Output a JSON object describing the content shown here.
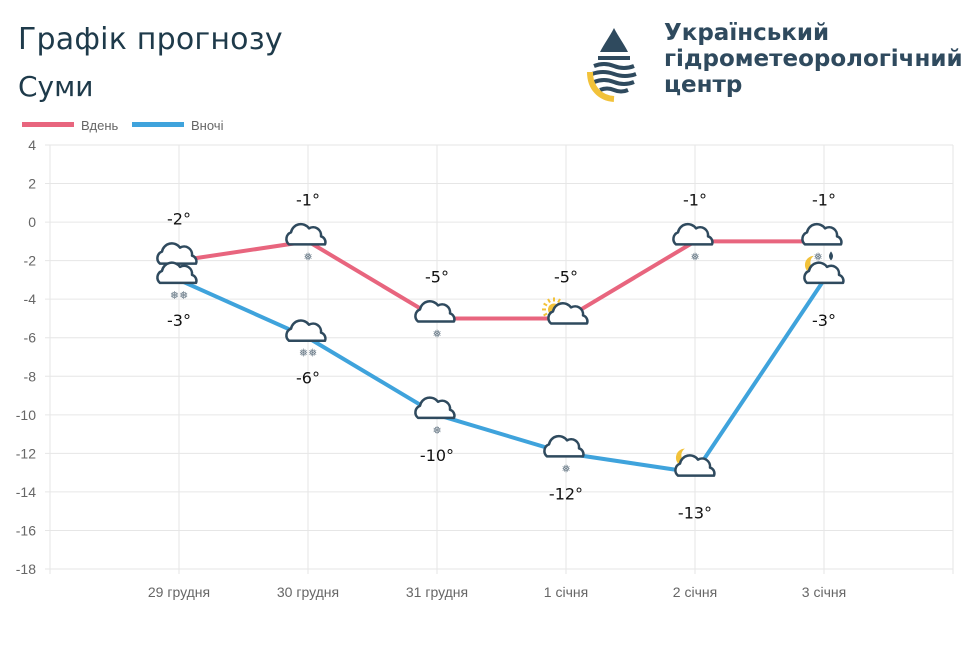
{
  "header": {
    "title": "Графік прогнозу",
    "city": "Суми",
    "org_line1": "Український",
    "org_line2": "гідрометеорологічний",
    "org_line3": "центр"
  },
  "chart_data": {
    "type": "line",
    "categories": [
      "29 грудня",
      "30 грудня",
      "31 грудня",
      "1 січня",
      "2 січня",
      "3 січня"
    ],
    "series": [
      {
        "name": "Вдень",
        "color": "#e8657e",
        "values": [
          -2,
          -1,
          -5,
          -5,
          -1,
          -1
        ],
        "labels": [
          "-2°",
          "-1°",
          "-5°",
          "-5°",
          "-1°",
          "-1°"
        ],
        "icons": [
          "cloud-snow",
          "cloud-light-snow",
          "cloud-light-snow",
          "sun-cloud",
          "cloud-light-snow",
          "cloud-snow-rain"
        ]
      },
      {
        "name": "Вночі",
        "color": "#3fa3dc",
        "values": [
          -3,
          -6,
          -10,
          -12,
          -13,
          -3
        ],
        "labels": [
          "-3°",
          "-6°",
          "-10°",
          "-12°",
          "-13°",
          "-3°"
        ],
        "icons": [
          "cloud-snow",
          "cloud-snow",
          "cloud-light-snow",
          "cloud-light-snow",
          "moon-cloud",
          "moon-cloud"
        ]
      }
    ],
    "ylim": [
      -18,
      4
    ],
    "yticks": [
      "4",
      "2",
      "0",
      "-2",
      "-4",
      "-6",
      "-8",
      "-10",
      "-12",
      "-14",
      "-16",
      "-18"
    ],
    "grid": true,
    "legend": "top-left"
  }
}
